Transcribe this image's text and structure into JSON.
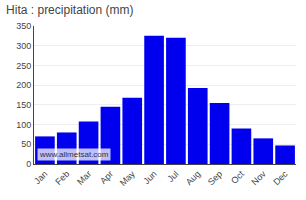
{
  "chart_data": {
    "type": "bar",
    "title": "Hita : precipitation (mm)",
    "categories": [
      "Jan",
      "Feb",
      "Mar",
      "Apr",
      "May",
      "Jun",
      "Jul",
      "Aug",
      "Sep",
      "Oct",
      "Nov",
      "Dec"
    ],
    "values": [
      70,
      80,
      108,
      145,
      168,
      325,
      320,
      193,
      155,
      90,
      65,
      47
    ],
    "color": "#0000ee",
    "ylim": [
      0,
      350
    ],
    "yticks": [
      0,
      50,
      100,
      150,
      200,
      250,
      300,
      350
    ],
    "grid": true,
    "annotations": [
      "www.allmetsat.com"
    ]
  }
}
